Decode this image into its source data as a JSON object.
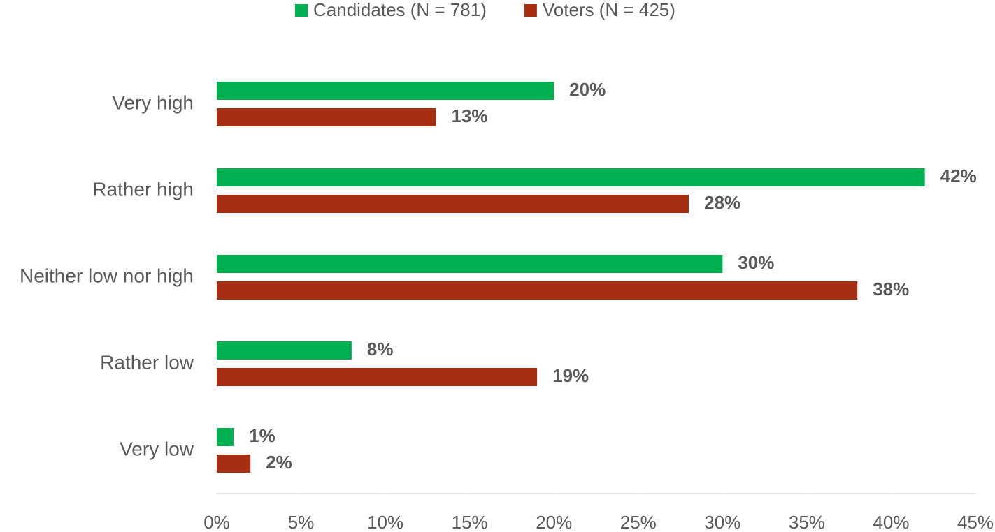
{
  "chart_data": {
    "type": "hbar",
    "categories": [
      "Very high",
      "Rather high",
      "Neither low nor high",
      "Rather low",
      "Very low"
    ],
    "series": [
      {
        "name": "Candidates (N = 781)",
        "color": "#00b050",
        "values": [
          20,
          42,
          30,
          8,
          1
        ],
        "value_labels": [
          "20%",
          "42%",
          "30%",
          "8%",
          "1%"
        ]
      },
      {
        "name": "Voters (N = 425)",
        "color": "#a62f12",
        "values": [
          13,
          28,
          38,
          19,
          2
        ],
        "value_labels": [
          "13%",
          "28%",
          "38%",
          "19%",
          "2%"
        ]
      }
    ],
    "xlim": [
      0,
      45
    ],
    "xticks": [
      {
        "value": 0,
        "label": "0%"
      },
      {
        "value": 5,
        "label": "5%"
      },
      {
        "value": 10,
        "label": "10%"
      },
      {
        "value": 15,
        "label": "15%"
      },
      {
        "value": 20,
        "label": "20%"
      },
      {
        "value": 25,
        "label": "25%"
      },
      {
        "value": 30,
        "label": "30%"
      },
      {
        "value": 35,
        "label": "35%"
      },
      {
        "value": 40,
        "label": "40%"
      },
      {
        "value": 45,
        "label": "45%"
      }
    ],
    "legend": "top"
  }
}
